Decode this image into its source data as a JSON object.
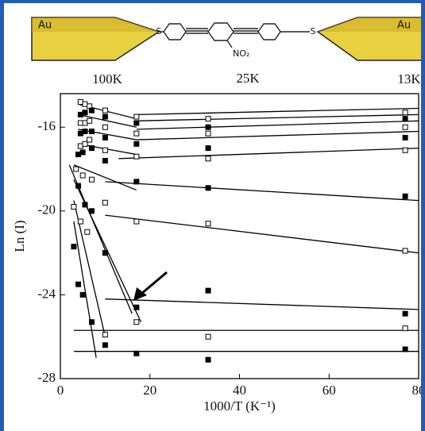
{
  "schematic": {
    "electrode_left": "Au",
    "electrode_right": "Au",
    "sulfur_left": "S",
    "sulfur_right": "S",
    "nitro": "NO₂"
  },
  "temperatures": [
    "100K",
    "25K",
    "13K"
  ],
  "chart_data": {
    "type": "scatter",
    "x_label": "1000/T (K⁻¹)",
    "y_label": "Ln (I)",
    "xlim": [
      0,
      80
    ],
    "xticks": [
      0,
      20,
      40,
      60,
      80
    ],
    "ylim": [
      -28,
      -14.4
    ],
    "yticks": [
      -16,
      -20,
      -24,
      -28
    ],
    "series": [
      {
        "marker": "open",
        "color": "#000",
        "x": [
          4.5,
          5.5,
          6.5,
          10,
          17,
          33,
          77
        ],
        "values": [
          -14.8,
          -14.9,
          -15.0,
          -15.2,
          -15.5,
          -15.6,
          -15.3
        ]
      },
      {
        "marker": "filled",
        "color": "#000",
        "x": [
          4.5,
          5.5,
          7,
          10,
          17,
          33,
          77
        ],
        "values": [
          -15.4,
          -15.3,
          -15.2,
          -15.5,
          -15.8,
          -16.0,
          -15.6
        ]
      },
      {
        "marker": "open",
        "color": "#000",
        "x": [
          4.5,
          5.5,
          6.5,
          10,
          17,
          33,
          77
        ],
        "values": [
          -15.8,
          -15.8,
          -15.7,
          -16.0,
          -16.3,
          -16.3,
          -16.0
        ]
      },
      {
        "marker": "filled",
        "color": "#000",
        "x": [
          4.5,
          5.5,
          7,
          10,
          17,
          33,
          77
        ],
        "values": [
          -16.3,
          -16.2,
          -16.2,
          -16.5,
          -16.8,
          -17.0,
          -16.5
        ]
      },
      {
        "marker": "open",
        "color": "#000",
        "x": [
          4.5,
          5.5,
          6.5,
          10,
          17,
          33,
          77
        ],
        "values": [
          -16.9,
          -16.8,
          -16.6,
          -17.1,
          -17.4,
          -17.5,
          -17.1
        ]
      },
      {
        "marker": "filled",
        "color": "#000",
        "x": [
          4,
          5,
          7,
          10,
          17,
          33,
          77
        ],
        "values": [
          -17.3,
          -17.2,
          -17.0,
          -17.6,
          -18.6,
          -18.9,
          -19.3
        ]
      },
      {
        "marker": "open",
        "color": "#000",
        "x": [
          3.5,
          5,
          7,
          10,
          17,
          33,
          77
        ],
        "values": [
          -18.0,
          -18.3,
          -18.5,
          -19.6,
          -20.5,
          -20.6,
          -21.9
        ]
      },
      {
        "marker": "filled",
        "color": "#000",
        "x": [
          4,
          5.5,
          7,
          10,
          17,
          33,
          77
        ],
        "values": [
          -18.8,
          -19.7,
          -20.0,
          -22.0,
          -24.6,
          -23.8,
          -24.9
        ]
      },
      {
        "marker": "open",
        "color": "#000",
        "x": [
          3,
          4.5,
          6,
          10,
          17,
          33,
          77
        ],
        "values": [
          -19.8,
          -20.5,
          -21.0,
          -25.9,
          -25.3,
          -26.0,
          -25.6
        ]
      },
      {
        "marker": "filled",
        "color": "#000",
        "x": [
          3,
          4,
          5,
          7,
          10,
          17,
          33,
          77
        ],
        "values": [
          -21.7,
          -23.5,
          -24.0,
          -25.3,
          -26.4,
          -26.8,
          -27.1,
          -26.6
        ]
      }
    ],
    "fit_lines": [
      {
        "x": [
          17,
          80
        ],
        "values": [
          -15.4,
          -15.1
        ]
      },
      {
        "x": [
          17,
          80
        ],
        "values": [
          -15.7,
          -15.4
        ]
      },
      {
        "x": [
          17,
          80
        ],
        "values": [
          -16.1,
          -15.7
        ]
      },
      {
        "x": [
          17,
          80
        ],
        "values": [
          -16.6,
          -16.2
        ]
      },
      {
        "x": [
          13,
          80
        ],
        "values": [
          -17.5,
          -17.0
        ]
      },
      {
        "x": [
          10,
          80
        ],
        "values": [
          -18.6,
          -19.5
        ]
      },
      {
        "x": [
          10,
          80
        ],
        "values": [
          -20.2,
          -22.0
        ]
      },
      {
        "x": [
          10,
          80
        ],
        "values": [
          -24.2,
          -24.7
        ]
      },
      {
        "x": [
          3,
          80
        ],
        "values": [
          -25.7,
          -25.7
        ]
      },
      {
        "x": [
          3,
          80
        ],
        "values": [
          -26.7,
          -26.7
        ]
      },
      {
        "x": [
          4,
          17
        ],
        "values": [
          -14.9,
          -15.6
        ]
      },
      {
        "x": [
          4,
          17
        ],
        "values": [
          -15.4,
          -16.0
        ]
      },
      {
        "x": [
          4,
          17
        ],
        "values": [
          -16.1,
          -16.6
        ]
      },
      {
        "x": [
          4,
          17
        ],
        "values": [
          -16.8,
          -17.3
        ]
      },
      {
        "x": [
          3,
          17
        ],
        "values": [
          -17.8,
          -19.0
        ]
      },
      {
        "x": [
          2,
          16
        ],
        "values": [
          -17.8,
          -24.9
        ]
      },
      {
        "x": [
          3,
          18
        ],
        "values": [
          -18.5,
          -25.3
        ]
      },
      {
        "x": [
          3,
          10
        ],
        "values": [
          -19.5,
          -26.0
        ]
      },
      {
        "x": [
          3,
          8
        ],
        "values": [
          -20.5,
          -27.0
        ]
      }
    ]
  }
}
